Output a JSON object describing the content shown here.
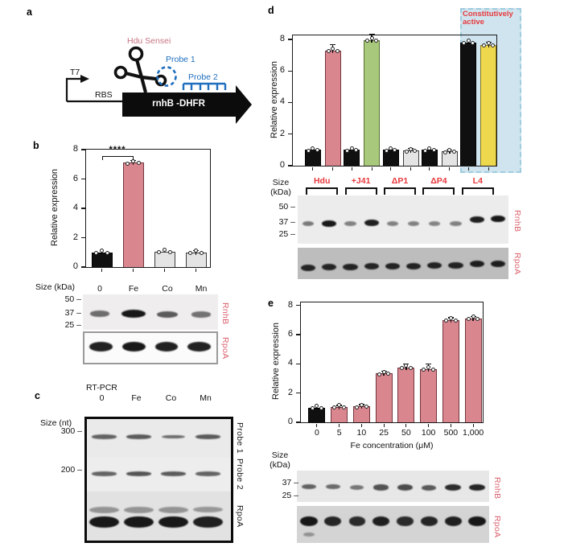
{
  "figure": {
    "panels": {
      "a": {
        "label": "a",
        "riboswitch_name": "Hdu Sensei",
        "probe1_label": "Probe 1",
        "probe2_label": "Probe 2",
        "promoter_label": "T7",
        "rbs_label": "RBS",
        "gene_label": "rnhB -DHFR"
      },
      "b": {
        "label": "b",
        "blot": {
          "size_label": "Size (kDa)",
          "lane_labels": [
            "0",
            "Fe",
            "Co",
            "Mn"
          ],
          "markers": [
            "50",
            "37",
            "25"
          ],
          "rows": [
            {
              "name": "RnhB",
              "intensities": [
                0.45,
                1.0,
                0.55,
                0.4
              ]
            },
            {
              "name": "RpoA",
              "intensities": [
                0.95,
                1.0,
                0.95,
                0.95
              ]
            }
          ]
        }
      },
      "c": {
        "label": "c",
        "title": "RT-PCR",
        "size_label": "Size (nt)",
        "lane_labels": [
          "0",
          "Fe",
          "Co",
          "Mn"
        ],
        "markers": [
          "300",
          "200"
        ],
        "rows": [
          {
            "name": "Probe 1",
            "intensities": [
              0.5,
              0.55,
              0.45,
              0.55
            ]
          },
          {
            "name": "Probe 2",
            "intensities": [
              0.5,
              0.6,
              0.55,
              0.5
            ]
          },
          {
            "name": "RpoA",
            "intensities": [
              1.0,
              1.0,
              1.0,
              0.95
            ]
          }
        ]
      },
      "d": {
        "label": "d",
        "size_lines": [
          "Size",
          "(kDa)"
        ],
        "group_labels": [
          "Hdu",
          "+J41",
          "ΔP1",
          "ΔP4",
          "L4"
        ],
        "markers": [
          "50",
          "37",
          "25"
        ],
        "rows": [
          {
            "name": "RnhB",
            "intensities": [
              0.35,
              1.0,
              0.3,
              0.95,
              0.3,
              0.3,
              0.28,
              0.3,
              0.95,
              1.0
            ]
          },
          {
            "name": "RpoA",
            "intensities": [
              0.9,
              0.9,
              0.9,
              0.9,
              0.9,
              0.9,
              0.9,
              0.9,
              0.95,
              0.95
            ]
          }
        ]
      },
      "e": {
        "label": "e",
        "size_lines": [
          "Size",
          "(kDa)"
        ],
        "markers": [
          "37",
          "25"
        ],
        "rows": [
          {
            "name": "RnhB",
            "intensities": [
              0.5,
              0.45,
              0.35,
              0.6,
              0.65,
              0.55,
              0.85,
              0.9
            ]
          },
          {
            "name": "RpoA",
            "intensities": [
              1.0,
              0.9,
              0.85,
              0.95,
              0.85,
              0.9,
              0.95,
              1.0
            ]
          }
        ]
      }
    }
  },
  "chart_data": [
    {
      "id": "b",
      "type": "bar",
      "ylabel": "Relative expression",
      "ylim": [
        0,
        8
      ],
      "yticks": [
        0,
        2,
        4,
        6,
        8
      ],
      "categories": [
        "0",
        "Fe",
        "Co",
        "Mn"
      ],
      "values": [
        1.0,
        7.1,
        1.05,
        1.0
      ],
      "errors": [
        0.05,
        0.12,
        0.07,
        0.1
      ],
      "bar_colors": [
        "#101010",
        "#d9868f",
        "#e4e4e4",
        "#e4e4e4"
      ],
      "bar_borders": [
        "#000000",
        "#74363e",
        "#3c3c3c",
        "#3c3c3c"
      ],
      "significance": {
        "label": "****",
        "from": 0,
        "to": 1,
        "y": 7.55
      },
      "points_per_bar": 3,
      "grid": false,
      "legend": "none"
    },
    {
      "id": "d",
      "type": "grouped-bar",
      "ylabel": "Relative expression",
      "ylim": [
        0,
        8.25
      ],
      "yticks": [
        0,
        2,
        4,
        6,
        8
      ],
      "groups": [
        "Hdu",
        "+J41",
        "ΔP1",
        "ΔP4",
        "L4"
      ],
      "values": [
        [
          1.0,
          7.3
        ],
        [
          1.0,
          7.95
        ],
        [
          1.0,
          0.95
        ],
        [
          1.0,
          0.9
        ],
        [
          7.8,
          7.65
        ]
      ],
      "errors": [
        [
          0.05,
          0.33
        ],
        [
          0.05,
          0.32
        ],
        [
          0.05,
          0.12
        ],
        [
          0.05,
          0.08
        ],
        [
          0.06,
          0.14
        ]
      ],
      "bar_colors": [
        [
          "#101010",
          "#d9868f"
        ],
        [
          "#101010",
          "#a8c87c"
        ],
        [
          "#101010",
          "#e4e4e4"
        ],
        [
          "#101010",
          "#e4e4e4"
        ],
        [
          "#101010",
          "#eed94e"
        ]
      ],
      "bar_borders": [
        [
          "#000000",
          "#74363e"
        ],
        [
          "#000000",
          "#586e33"
        ],
        [
          "#000000",
          "#3c3c3c"
        ],
        [
          "#000000",
          "#3c3c3c"
        ],
        [
          "#000000",
          "#8a7a22"
        ]
      ],
      "annotation": {
        "text": "Constitutively active",
        "applies_to_group": "L4",
        "box_color": "#cfe4ee",
        "text_color": "#e8393d"
      },
      "points_per_bar": 3,
      "grid": false,
      "legend": "none"
    },
    {
      "id": "e",
      "type": "bar",
      "ylabel": "Relative expression",
      "xlabel": "Fe concentration (μM)",
      "ylim": [
        0,
        8.2
      ],
      "yticks": [
        0,
        2,
        4,
        6,
        8
      ],
      "categories": [
        "0",
        "5",
        "10",
        "25",
        "50",
        "100",
        "500",
        "1,000"
      ],
      "values": [
        1.0,
        1.05,
        1.1,
        3.35,
        3.75,
        3.65,
        7.0,
        7.1
      ],
      "errors": [
        0.04,
        0.08,
        0.08,
        0.12,
        0.2,
        0.3,
        0.12,
        0.1
      ],
      "bar_colors": [
        "#101010",
        "#d9868f",
        "#d9868f",
        "#d9868f",
        "#d9868f",
        "#d9868f",
        "#d9868f",
        "#d9868f"
      ],
      "bar_borders": [
        "#000000",
        "#74363e",
        "#74363e",
        "#74363e",
        "#74363e",
        "#74363e",
        "#74363e",
        "#74363e"
      ],
      "points_per_bar": 3,
      "grid": false,
      "legend": "none"
    }
  ]
}
